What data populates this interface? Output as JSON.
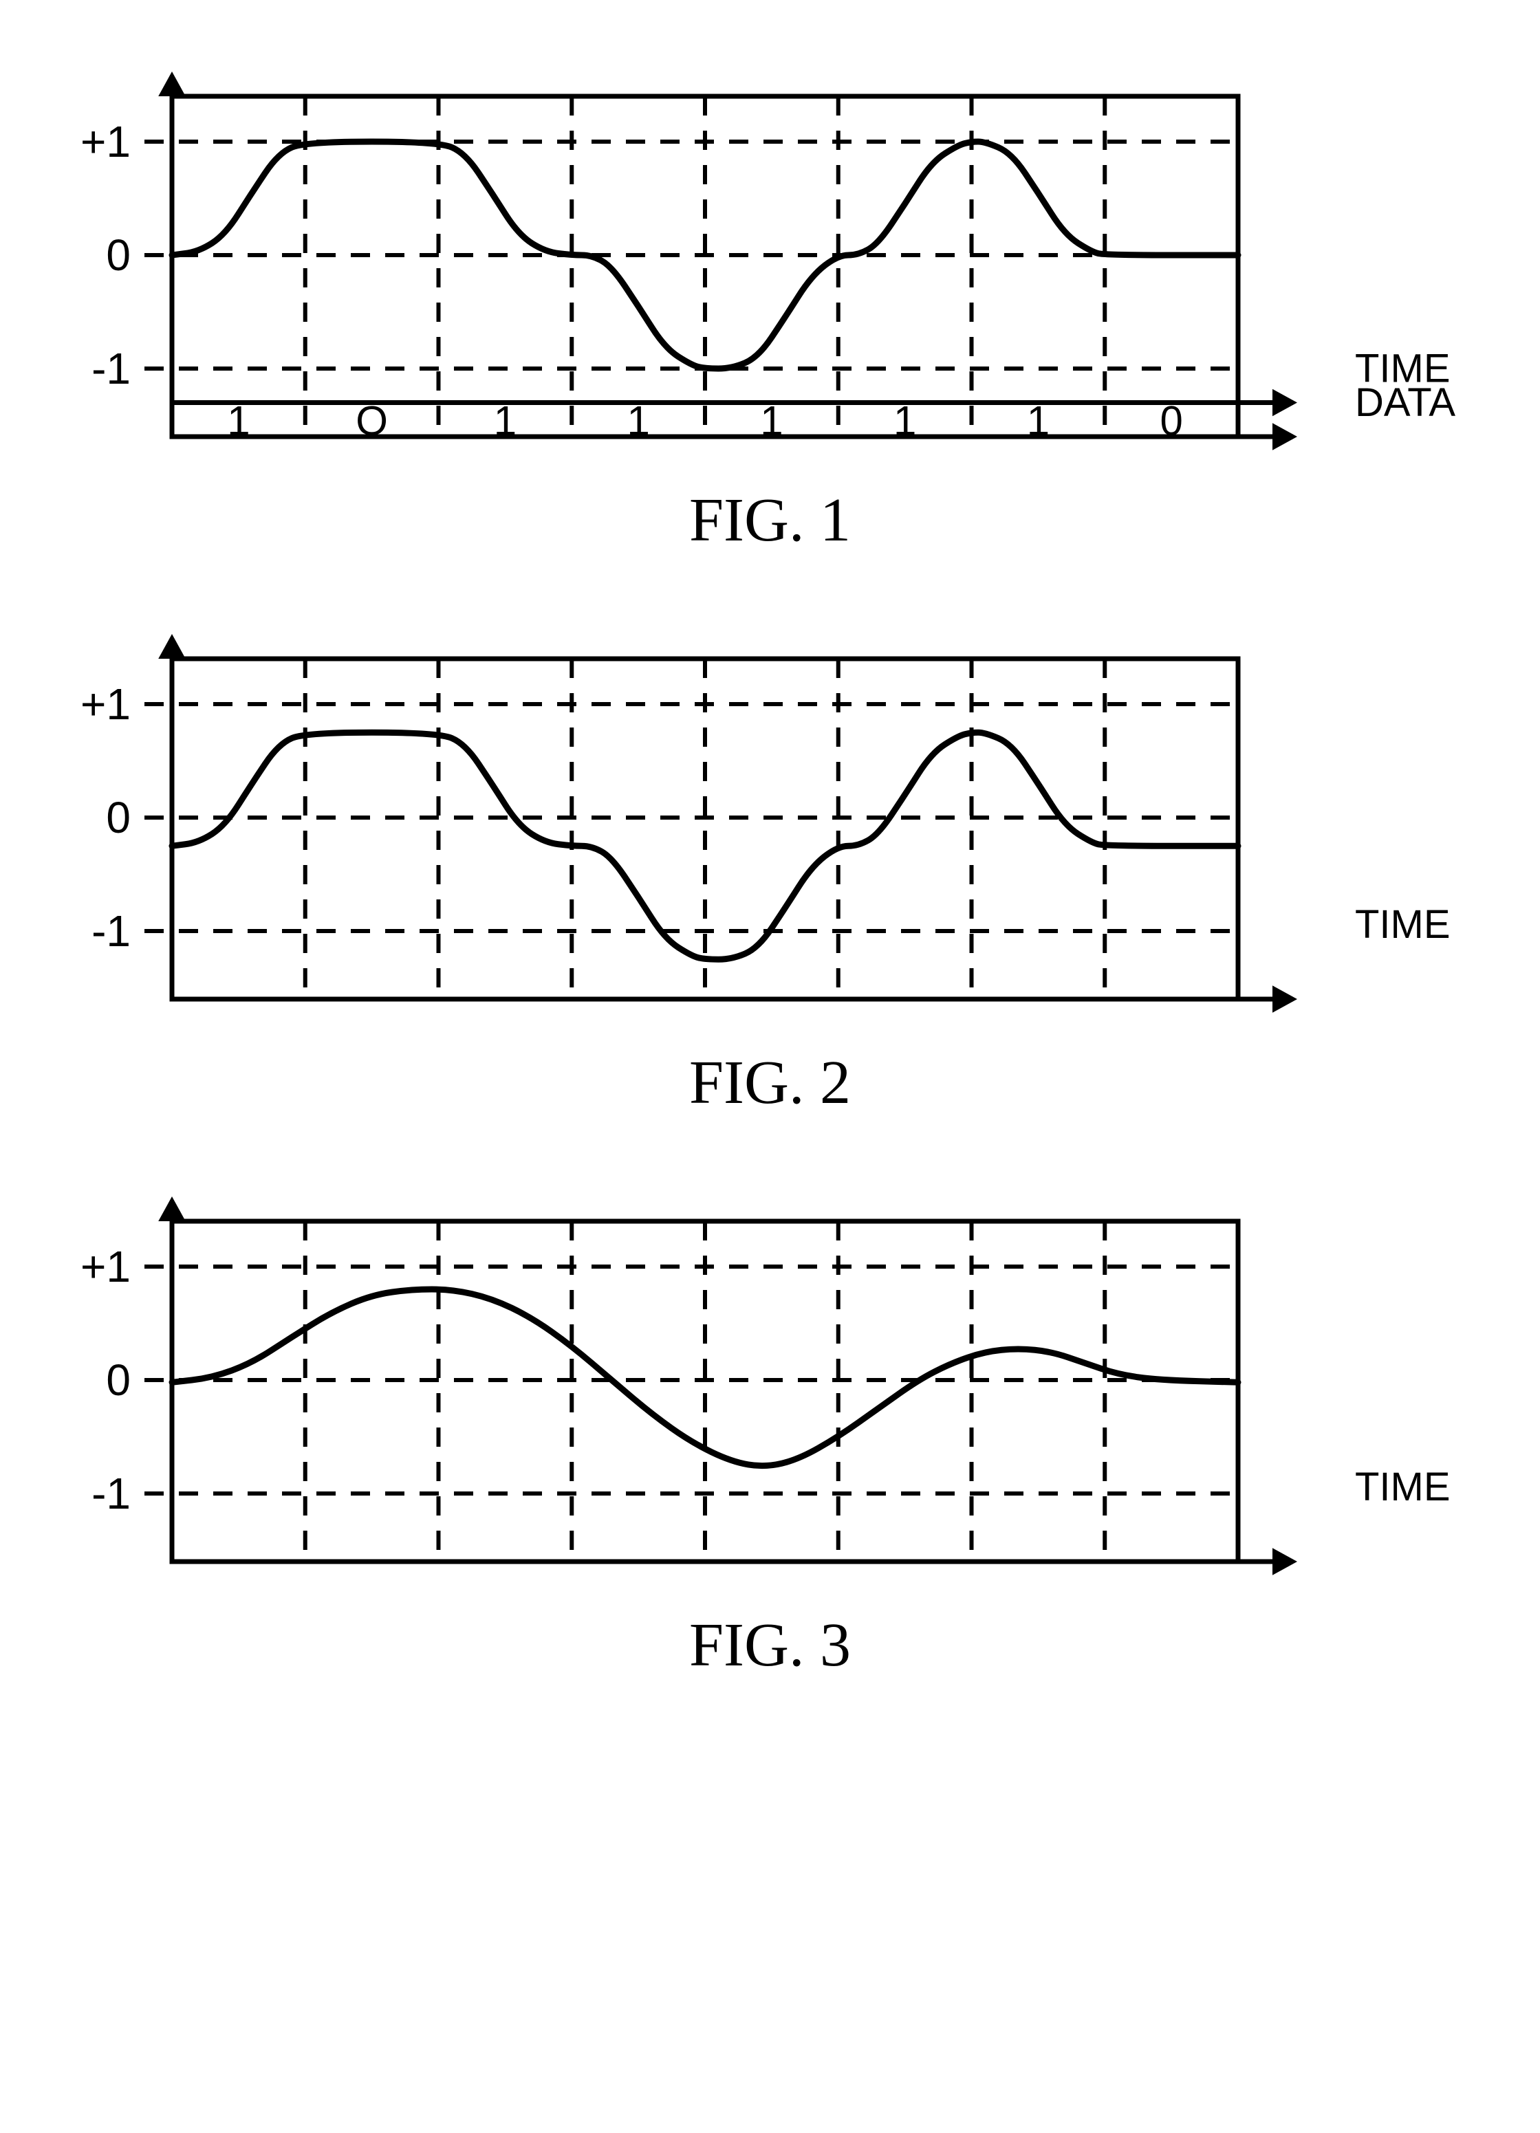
{
  "page": {
    "background_color": "#ffffff",
    "aspect": "2239x3102"
  },
  "common": {
    "stroke_color": "#000000",
    "stroke_width_axis": 7,
    "stroke_width_wave": 9,
    "stroke_width_grid": 6,
    "dash_pattern": "28 22",
    "arrow_size": 36,
    "axis_label_font_family": "Helvetica, Arial, sans-serif",
    "axis_label_font_size": 58,
    "tick_label_font_size": 64,
    "data_label_font_size": 60,
    "caption_font_family": "Times New Roman, Times, serif",
    "caption_font_size": 90
  },
  "fig1": {
    "caption": "FIG. 1",
    "x_axis_label": "TIME",
    "data_axis_label": "DATA",
    "y_ticks": [
      {
        "label": "+1",
        "value": 1
      },
      {
        "label": "0",
        "value": 0
      },
      {
        "label": "-1",
        "value": -1
      }
    ],
    "x_divisions": 8,
    "plot": {
      "xlim": [
        0,
        8
      ],
      "ylim": [
        -1.6,
        1.4
      ]
    },
    "data_bits": [
      "1",
      "O",
      "1",
      "1",
      "1",
      "1",
      "1",
      "0"
    ],
    "waveform_points": [
      [
        0.0,
        0.0
      ],
      [
        0.2,
        0.03
      ],
      [
        0.4,
        0.18
      ],
      [
        0.6,
        0.55
      ],
      [
        0.8,
        0.9
      ],
      [
        1.0,
        1.0
      ],
      [
        2.0,
        1.0
      ],
      [
        2.2,
        0.9
      ],
      [
        2.4,
        0.55
      ],
      [
        2.6,
        0.18
      ],
      [
        2.8,
        0.03
      ],
      [
        3.0,
        0.0
      ],
      [
        3.15,
        0.0
      ],
      [
        3.3,
        -0.1
      ],
      [
        3.5,
        -0.45
      ],
      [
        3.7,
        -0.82
      ],
      [
        3.9,
        -0.97
      ],
      [
        4.0,
        -1.0
      ],
      [
        4.2,
        -1.0
      ],
      [
        4.4,
        -0.9
      ],
      [
        4.6,
        -0.55
      ],
      [
        4.8,
        -0.18
      ],
      [
        5.0,
        0.0
      ],
      [
        5.15,
        0.0
      ],
      [
        5.3,
        0.1
      ],
      [
        5.5,
        0.45
      ],
      [
        5.7,
        0.82
      ],
      [
        5.9,
        0.97
      ],
      [
        6.0,
        1.0
      ],
      [
        6.1,
        1.0
      ],
      [
        6.3,
        0.9
      ],
      [
        6.5,
        0.55
      ],
      [
        6.7,
        0.18
      ],
      [
        6.9,
        0.03
      ],
      [
        7.0,
        0.0
      ],
      [
        8.0,
        0.0
      ]
    ]
  },
  "fig2": {
    "caption": "FIG. 2",
    "x_axis_label": "TIME",
    "y_ticks": [
      {
        "label": "+1",
        "value": 1
      },
      {
        "label": "0",
        "value": 0
      },
      {
        "label": "-1",
        "value": -1
      }
    ],
    "x_divisions": 8,
    "plot": {
      "xlim": [
        0,
        8
      ],
      "ylim": [
        -1.6,
        1.4
      ]
    },
    "dc_offset": -0.25,
    "amplitude": 1.0,
    "waveform_points": [
      [
        0.0,
        -0.25
      ],
      [
        0.2,
        -0.22
      ],
      [
        0.4,
        -0.07
      ],
      [
        0.6,
        0.3
      ],
      [
        0.8,
        0.65
      ],
      [
        1.0,
        0.75
      ],
      [
        2.0,
        0.75
      ],
      [
        2.2,
        0.65
      ],
      [
        2.4,
        0.3
      ],
      [
        2.6,
        -0.07
      ],
      [
        2.8,
        -0.22
      ],
      [
        3.0,
        -0.25
      ],
      [
        3.15,
        -0.25
      ],
      [
        3.3,
        -0.35
      ],
      [
        3.5,
        -0.7
      ],
      [
        3.7,
        -1.07
      ],
      [
        3.9,
        -1.22
      ],
      [
        4.0,
        -1.25
      ],
      [
        4.2,
        -1.25
      ],
      [
        4.4,
        -1.15
      ],
      [
        4.6,
        -0.8
      ],
      [
        4.8,
        -0.43
      ],
      [
        5.0,
        -0.25
      ],
      [
        5.15,
        -0.25
      ],
      [
        5.3,
        -0.15
      ],
      [
        5.5,
        0.2
      ],
      [
        5.7,
        0.57
      ],
      [
        5.9,
        0.72
      ],
      [
        6.0,
        0.75
      ],
      [
        6.1,
        0.75
      ],
      [
        6.3,
        0.65
      ],
      [
        6.5,
        0.3
      ],
      [
        6.7,
        -0.07
      ],
      [
        6.9,
        -0.22
      ],
      [
        7.0,
        -0.25
      ],
      [
        8.0,
        -0.25
      ]
    ]
  },
  "fig3": {
    "caption": "FIG. 3",
    "x_axis_label": "TIME",
    "y_ticks": [
      {
        "label": "+1",
        "value": 1
      },
      {
        "label": "0",
        "value": 0
      },
      {
        "label": "-1",
        "value": -1
      }
    ],
    "x_divisions": 8,
    "plot": {
      "xlim": [
        0,
        8
      ],
      "ylim": [
        -1.6,
        1.4
      ]
    },
    "waveform_points": [
      [
        0.0,
        -0.02
      ],
      [
        0.3,
        0.02
      ],
      [
        0.6,
        0.15
      ],
      [
        0.9,
        0.38
      ],
      [
        1.2,
        0.6
      ],
      [
        1.5,
        0.75
      ],
      [
        1.8,
        0.8
      ],
      [
        2.1,
        0.8
      ],
      [
        2.4,
        0.72
      ],
      [
        2.7,
        0.55
      ],
      [
        3.0,
        0.3
      ],
      [
        3.3,
        0.0
      ],
      [
        3.6,
        -0.3
      ],
      [
        3.9,
        -0.55
      ],
      [
        4.2,
        -0.72
      ],
      [
        4.45,
        -0.77
      ],
      [
        4.7,
        -0.7
      ],
      [
        5.0,
        -0.5
      ],
      [
        5.3,
        -0.25
      ],
      [
        5.6,
        0.0
      ],
      [
        5.85,
        0.15
      ],
      [
        6.1,
        0.25
      ],
      [
        6.35,
        0.28
      ],
      [
        6.6,
        0.25
      ],
      [
        6.85,
        0.15
      ],
      [
        7.1,
        0.05
      ],
      [
        7.4,
        0.0
      ],
      [
        8.0,
        -0.02
      ]
    ]
  }
}
